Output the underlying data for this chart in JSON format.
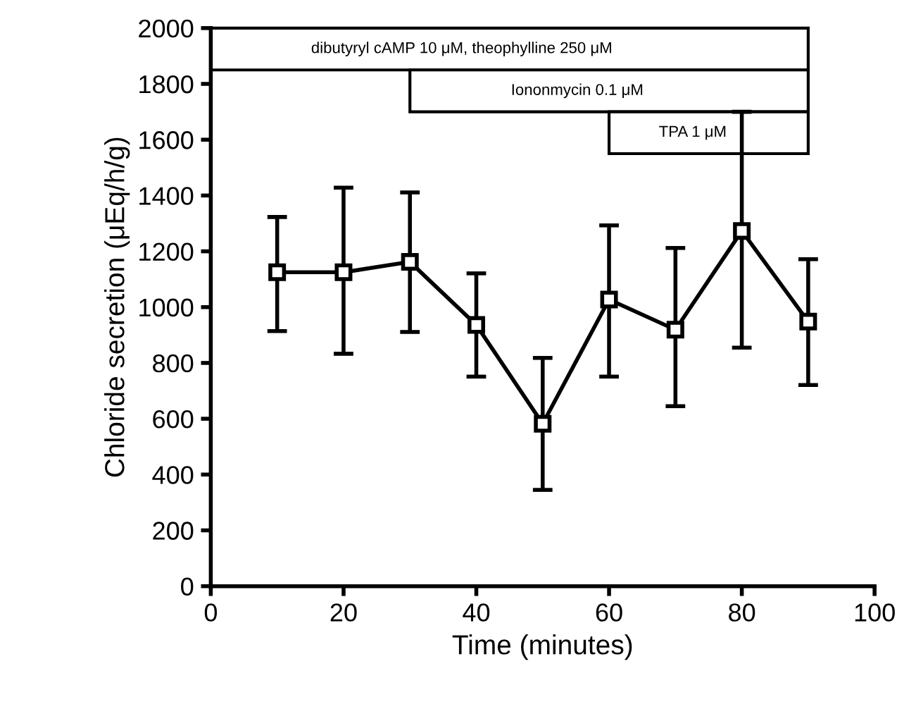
{
  "chart_data": {
    "type": "line",
    "xlabel": "Time (minutes)",
    "ylabel": "Chloride secretion (μEq/h/g)",
    "x": [
      10,
      20,
      30,
      40,
      50,
      60,
      70,
      80,
      90
    ],
    "series": [
      {
        "color": "#000000",
        "values": [
          1125,
          1125,
          1162,
          936,
          582,
          1027,
          919,
          1273,
          948
        ],
        "errors": [
          [
            914,
            1323
          ],
          [
            833,
            1428
          ],
          [
            911,
            1411
          ],
          [
            751,
            1121
          ],
          [
            345,
            818
          ],
          [
            751,
            1293
          ],
          [
            645,
            1212
          ],
          [
            855,
            1700
          ],
          [
            721,
            1172
          ]
        ]
      }
    ],
    "marker": "square",
    "line_style": "solid",
    "xlim": [
      0,
      100
    ],
    "xticks": [
      0,
      20,
      40,
      60,
      80,
      100
    ],
    "ylim": [
      0,
      2000
    ],
    "yticks": [
      0,
      200,
      400,
      600,
      800,
      1000,
      1200,
      1400,
      1600,
      1800,
      2000
    ],
    "bands": [
      {
        "axis": "x",
        "from": 0,
        "to": 90,
        "label": "dibutyryl cAMP 10 μM, theophylline 250 μM"
      },
      {
        "axis": "x",
        "from": 30,
        "to": 90,
        "label": "Iononmycin 0.1 μM"
      },
      {
        "axis": "x",
        "from": 60,
        "to": 90,
        "label": "TPA 1 μM"
      }
    ],
    "grid": false,
    "legend": false
  }
}
